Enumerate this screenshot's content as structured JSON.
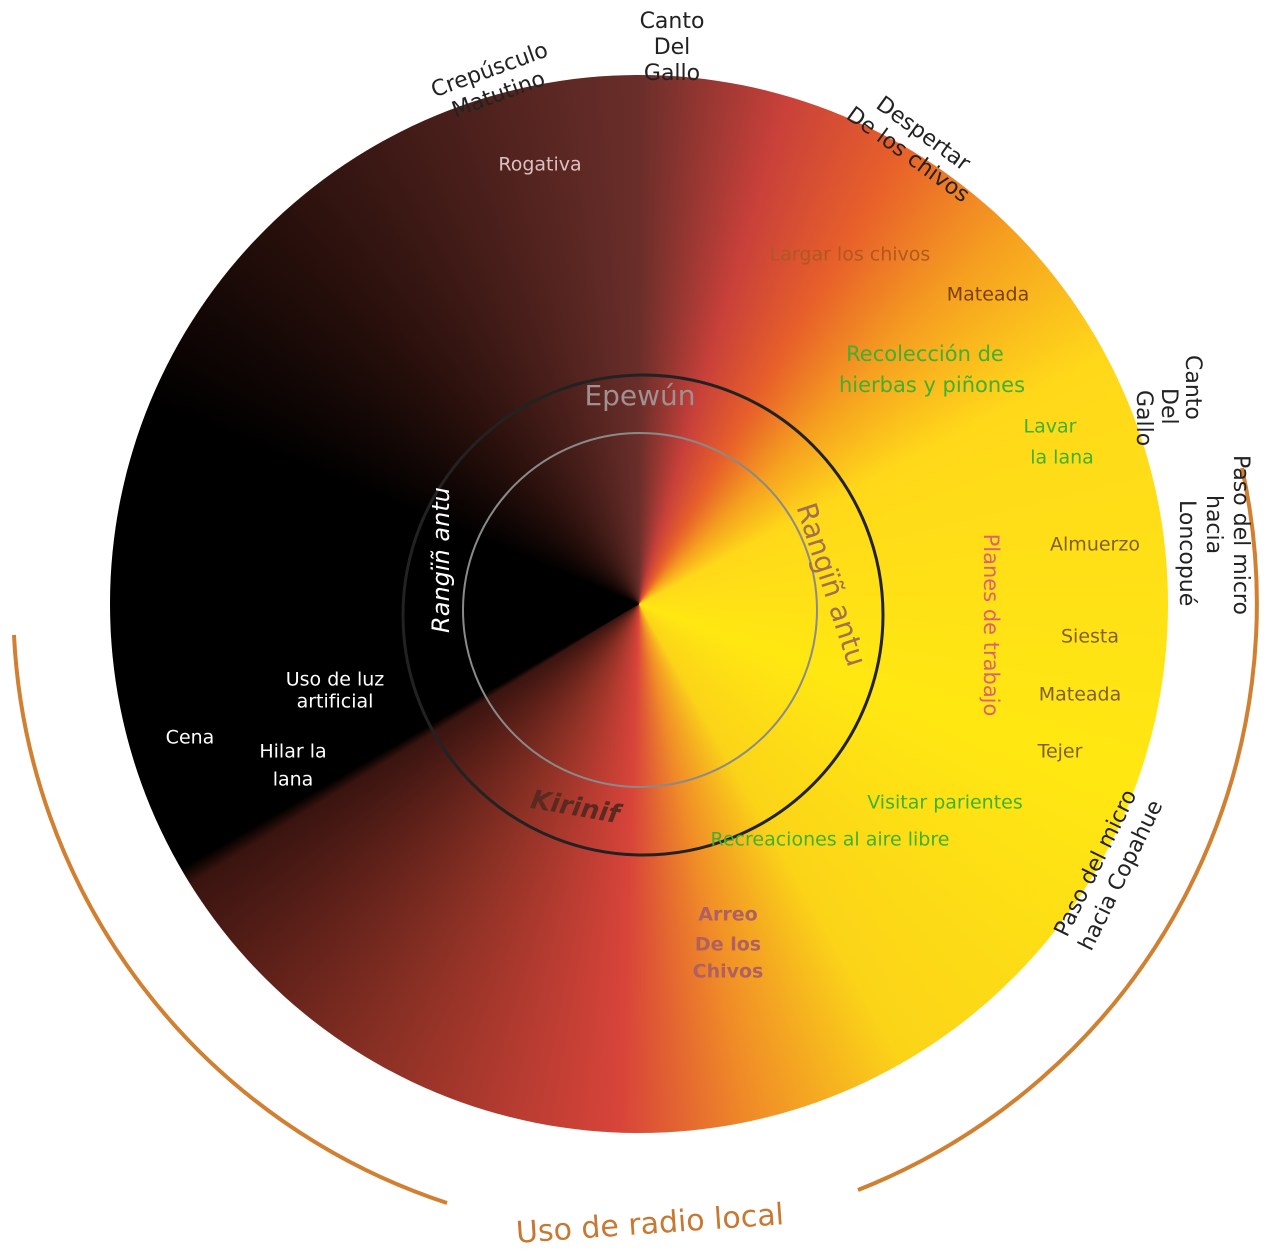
{
  "outer_labels": [
    {
      "lines": [
        "Crepúsculo",
        "Matutino"
      ]
    },
    {
      "lines": [
        "Canto",
        "Del",
        "Gallo"
      ]
    },
    {
      "lines": [
        "Despertar",
        "De los chivos"
      ]
    },
    {
      "lines": [
        "Canto",
        "Del",
        "Gallo"
      ]
    },
    {
      "lines": [
        "Paso del micro",
        "hacia",
        "Loncopué"
      ]
    },
    {
      "lines": [
        "Paso del micro",
        "hacia Copahue"
      ]
    }
  ],
  "inner_labels": [
    {
      "lines": [
        "Rogativa"
      ]
    },
    {
      "lines": [
        "Largar los chivos"
      ]
    },
    {
      "lines": [
        "Mateada"
      ]
    },
    {
      "lines": [
        "Recolección de",
        "hierbas y piñones"
      ]
    },
    {
      "lines": [
        "Lavar",
        "la lana"
      ]
    },
    {
      "lines": [
        "Planes de trabajo"
      ]
    },
    {
      "lines": [
        "Almuerzo"
      ]
    },
    {
      "lines": [
        "Siesta"
      ]
    },
    {
      "lines": [
        "Mateada"
      ]
    },
    {
      "lines": [
        "Tejer"
      ]
    },
    {
      "lines": [
        "Visitar parientes"
      ]
    },
    {
      "lines": [
        "Recreaciones al aire libre"
      ]
    },
    {
      "lines": [
        "Arreo",
        "De los",
        "Chivos"
      ]
    },
    {
      "lines": [
        "Cena"
      ]
    },
    {
      "lines": [
        "Hilar la",
        "lana"
      ]
    },
    {
      "lines": [
        "Uso de luz",
        "artificial"
      ]
    }
  ],
  "ring_labels": [
    "Rangïñ antu",
    "Epewún",
    "Rangïñ antu",
    "Kirinif"
  ],
  "footer": "Uso de radio local"
}
